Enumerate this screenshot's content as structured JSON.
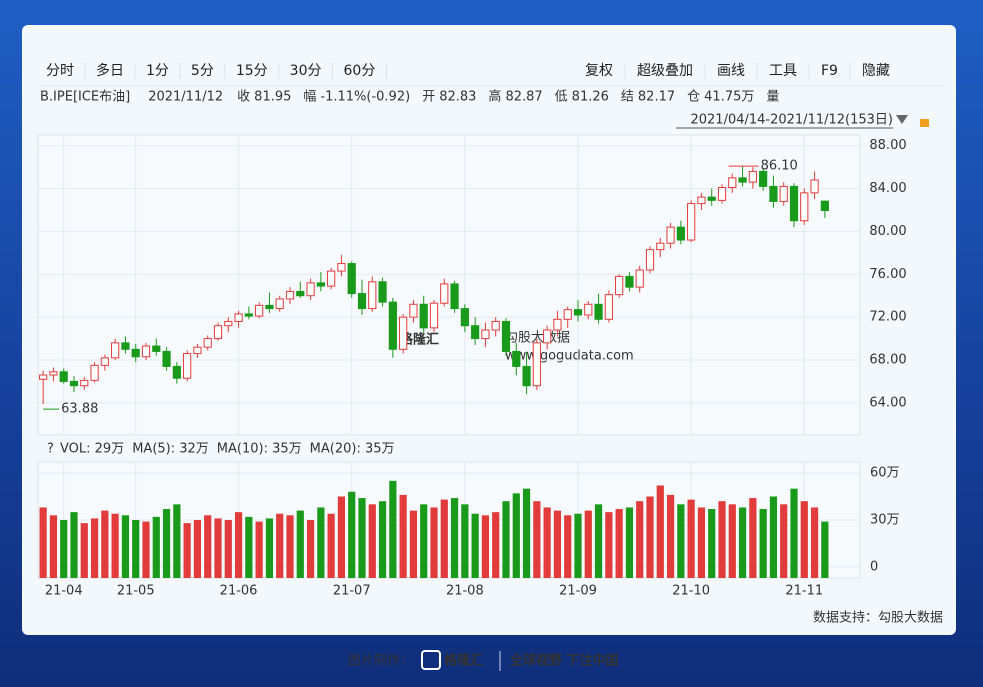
{
  "toolbar": {
    "left": [
      "分时",
      "多日",
      "1分",
      "5分",
      "15分",
      "30分",
      "60分"
    ],
    "right": [
      "复权",
      "超级叠加",
      "画线",
      "工具",
      "F9",
      "隐藏"
    ]
  },
  "quote": {
    "symbol": "B.IPE[ICE布油]",
    "date": "2021/11/12",
    "fields": [
      {
        "label": "收",
        "value": "81.95",
        "color": "#1a9a1a"
      },
      {
        "label": "幅",
        "value": "-1.11%(-0.92)",
        "color": "#1a9a1a"
      },
      {
        "label": "开",
        "value": "82.83",
        "color": "#1a9a1a"
      },
      {
        "label": "高",
        "value": "82.87",
        "color": "#333333"
      },
      {
        "label": "低",
        "value": "81.26",
        "color": "#1a9a1a"
      },
      {
        "label": "结",
        "value": "82.17",
        "color": "#1a9a1a"
      },
      {
        "label": "仓",
        "value": "41.75万",
        "color": "#333333"
      }
    ],
    "last": "量"
  },
  "range": "2021/04/14-2021/11/12(153日)",
  "chart_data": [
    {
      "type": "candlestick",
      "categories": [
        null,
        null,
        "21-04",
        null,
        null,
        null,
        null,
        null,
        null,
        "21-05",
        null,
        null,
        null,
        null,
        null,
        null,
        null,
        null,
        null,
        "21-06",
        null,
        null,
        null,
        null,
        null,
        null,
        null,
        null,
        null,
        null,
        "21-07",
        null,
        null,
        null,
        null,
        null,
        null,
        null,
        null,
        null,
        null,
        "21-08",
        null,
        null,
        null,
        null,
        null,
        null,
        null,
        null,
        null,
        null,
        "21-09",
        null,
        null,
        null,
        null,
        null,
        null,
        null,
        null,
        null,
        null,
        "21-10",
        null,
        null,
        null,
        null,
        null,
        null,
        null,
        null,
        null,
        null,
        "21-11",
        null,
        null
      ],
      "open": [
        66.2,
        66.6,
        66.9,
        66.0,
        65.6,
        66.1,
        67.5,
        68.2,
        69.6,
        69.0,
        68.3,
        69.3,
        68.8,
        67.4,
        66.3,
        68.6,
        69.2,
        70.0,
        71.2,
        71.6,
        72.3,
        72.1,
        73.1,
        72.8,
        73.7,
        74.4,
        74.0,
        75.2,
        74.9,
        76.3,
        77.0,
        74.2,
        72.8,
        75.3,
        73.4,
        69.0,
        72.0,
        73.2,
        71.0,
        73.3,
        75.1,
        72.8,
        71.2,
        70.0,
        70.8,
        71.6,
        68.8,
        67.4,
        65.6,
        69.6,
        70.8,
        71.8,
        72.7,
        72.2,
        73.2,
        71.8,
        74.1,
        75.8,
        74.8,
        76.4,
        78.3,
        78.9,
        80.4,
        79.2,
        82.6,
        83.2,
        82.9,
        84.1,
        85.0,
        84.6,
        85.6,
        84.2,
        82.8,
        84.2,
        81.0,
        83.6,
        82.83
      ],
      "high": [
        67.0,
        67.3,
        67.2,
        66.5,
        66.4,
        67.8,
        68.5,
        70.0,
        70.2,
        69.5,
        69.6,
        70.0,
        69.2,
        67.8,
        68.9,
        69.5,
        70.3,
        71.5,
        72.0,
        72.6,
        73.0,
        73.4,
        74.3,
        74.0,
        74.8,
        75.3,
        75.6,
        76.2,
        76.6,
        77.8,
        77.2,
        75.5,
        75.8,
        75.7,
        73.8,
        72.3,
        73.6,
        74.0,
        73.6,
        75.6,
        75.4,
        73.2,
        72.0,
        71.5,
        72.0,
        71.9,
        69.6,
        68.8,
        70.0,
        71.2,
        72.6,
        73.0,
        73.6,
        73.5,
        74.2,
        74.5,
        76.0,
        76.2,
        76.8,
        78.6,
        79.4,
        80.8,
        81.0,
        82.9,
        83.6,
        84.0,
        84.4,
        85.4,
        86.1,
        86.0,
        85.9,
        85.2,
        84.6,
        84.5,
        84.0,
        85.6,
        82.87
      ],
      "low": [
        63.88,
        66.0,
        65.8,
        65.0,
        65.2,
        65.9,
        67.0,
        68.0,
        68.6,
        67.8,
        68.0,
        68.4,
        67.0,
        65.8,
        66.0,
        68.2,
        68.9,
        69.8,
        70.6,
        71.0,
        71.8,
        71.9,
        72.4,
        72.5,
        73.2,
        73.8,
        73.6,
        74.4,
        74.6,
        75.8,
        73.8,
        72.2,
        72.5,
        73.0,
        68.2,
        68.6,
        71.5,
        70.5,
        70.6,
        73.0,
        72.4,
        70.6,
        69.4,
        69.2,
        70.2,
        68.4,
        66.6,
        64.8,
        65.2,
        69.0,
        70.2,
        71.0,
        71.6,
        71.8,
        71.4,
        71.5,
        73.8,
        74.4,
        74.3,
        76.1,
        77.6,
        78.4,
        78.8,
        79.0,
        82.0,
        82.4,
        82.6,
        83.6,
        84.2,
        84.0,
        83.8,
        82.2,
        82.4,
        80.4,
        80.6,
        83.0,
        81.26
      ],
      "close": [
        66.6,
        66.9,
        66.0,
        65.6,
        66.1,
        67.5,
        68.2,
        69.6,
        69.0,
        68.3,
        69.3,
        68.8,
        67.4,
        66.3,
        68.6,
        69.2,
        70.0,
        71.2,
        71.6,
        72.3,
        72.1,
        73.1,
        72.8,
        73.7,
        74.4,
        74.0,
        75.2,
        74.9,
        76.3,
        77.0,
        74.2,
        72.8,
        75.3,
        73.4,
        69.0,
        72.0,
        73.2,
        71.0,
        73.3,
        75.1,
        72.8,
        71.2,
        70.0,
        70.8,
        71.6,
        68.8,
        67.4,
        65.6,
        69.6,
        70.8,
        71.8,
        72.7,
        72.2,
        73.2,
        71.8,
        74.1,
        75.8,
        74.8,
        76.4,
        78.3,
        78.9,
        80.4,
        79.2,
        82.6,
        83.2,
        82.9,
        84.1,
        85.0,
        84.6,
        85.6,
        84.2,
        82.8,
        84.2,
        81.0,
        83.6,
        84.8,
        81.95
      ],
      "up_color": "#e23b3b",
      "down_color": "#1a9a1a",
      "ylim": [
        61,
        89
      ],
      "yticks": [
        {
          "value": 64,
          "label": "64.00"
        },
        {
          "value": 68,
          "label": "68.00"
        },
        {
          "value": 72,
          "label": "72.00"
        },
        {
          "value": 76,
          "label": "76.00"
        },
        {
          "value": 80,
          "label": "80.00"
        },
        {
          "value": 84,
          "label": "84.00"
        },
        {
          "value": 88,
          "label": "88.00"
        }
      ],
      "annotations": {
        "max": "86.10",
        "min": "63.88"
      },
      "grid": true
    },
    {
      "type": "bar",
      "legend": [
        {
          "text": "VOL: 29万",
          "color": "#333333"
        },
        {
          "text": "MA(5): 32万",
          "color": "#333333"
        },
        {
          "text": "MA(10): 35万",
          "color": "#e23b3b"
        },
        {
          "text": "MA(20): 35万",
          "color": "#2255dd"
        }
      ],
      "values": [
        38,
        33,
        30,
        35,
        28,
        31,
        36,
        34,
        33,
        30,
        29,
        32,
        37,
        40,
        28,
        30,
        33,
        31,
        30,
        35,
        32,
        29,
        31,
        34,
        33,
        36,
        30,
        38,
        34,
        45,
        48,
        44,
        40,
        42,
        55,
        46,
        36,
        40,
        38,
        43,
        44,
        40,
        34,
        33,
        35,
        42,
        47,
        50,
        42,
        38,
        36,
        33,
        34,
        36,
        40,
        35,
        37,
        38,
        42,
        45,
        52,
        46,
        40,
        43,
        38,
        37,
        42,
        40,
        38,
        44,
        37,
        45,
        40,
        50,
        42,
        38,
        29
      ],
      "ylim": [
        -7,
        67
      ],
      "yticks": [
        0,
        {
          "value": 30,
          "label": "30万"
        },
        {
          "value": 60,
          "label": "60万"
        }
      ],
      "grid": true
    }
  ],
  "source": "数据支持：勾股大数据",
  "watermark": {
    "brand": "格隆汇",
    "text": "勾股大数据",
    "url": "www.gogudata.com"
  },
  "footer": {
    "prefix": "图片制作：",
    "brand": "格隆汇",
    "slogan": "全球视野 下注中国"
  }
}
